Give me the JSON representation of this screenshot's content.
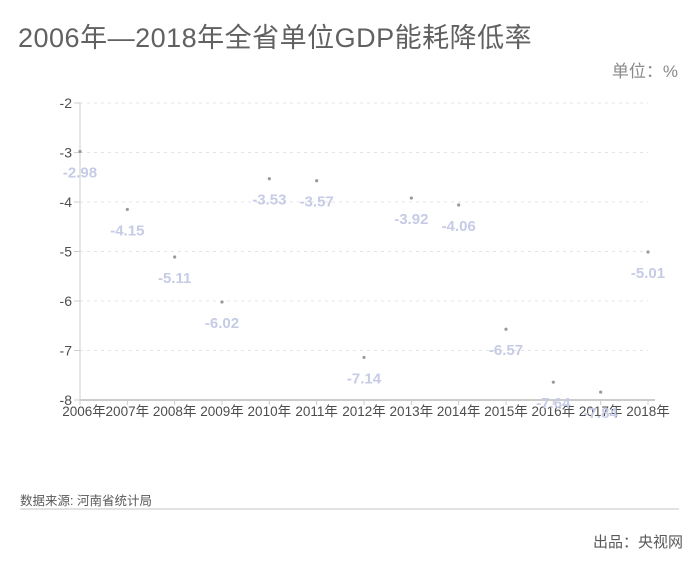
{
  "title": "2006年—2018年全省单位GDP能耗降低率",
  "unit_label": "单位：%",
  "footer": {
    "source": "数据来源: 河南省统计局",
    "producer": "出品：央视网"
  },
  "chart_data": {
    "type": "scatter",
    "title": "2006年—2018年全省单位GDP能耗降低率",
    "unit": "单位：%",
    "categories": [
      "2006年",
      "2007年",
      "2008年",
      "2009年",
      "2010年",
      "2011年",
      "2012年",
      "2013年",
      "2014年",
      "2015年",
      "2016年",
      "2017年",
      "2018年"
    ],
    "values": [
      -2.98,
      -4.15,
      -5.11,
      -6.02,
      -3.53,
      -3.57,
      -7.14,
      -3.92,
      -4.06,
      -6.57,
      -7.64,
      -7.84,
      -5.01
    ],
    "point_labels": [
      "-2.98",
      "-4.15",
      "-5.11",
      "-6.02",
      "-3.53",
      "-3.57",
      "-7.14",
      "-3.92",
      "-4.06",
      "-6.57",
      "-7.64",
      "-7.84",
      "-5.01"
    ],
    "xlabel": "",
    "ylabel": "单位：%",
    "ylim": [
      -8,
      -2
    ],
    "yticks": [
      -2,
      -3,
      -4,
      -5,
      -6,
      -7,
      -8
    ],
    "grid": true,
    "grid_style": "dashed",
    "legend": "none",
    "colors": {
      "point_label": "#c6cbe6",
      "point": "#9a9a9a",
      "grid_line": "#e4e4e4",
      "axis_line": "#cccccc",
      "axis_text": "#4d4d4d"
    }
  }
}
